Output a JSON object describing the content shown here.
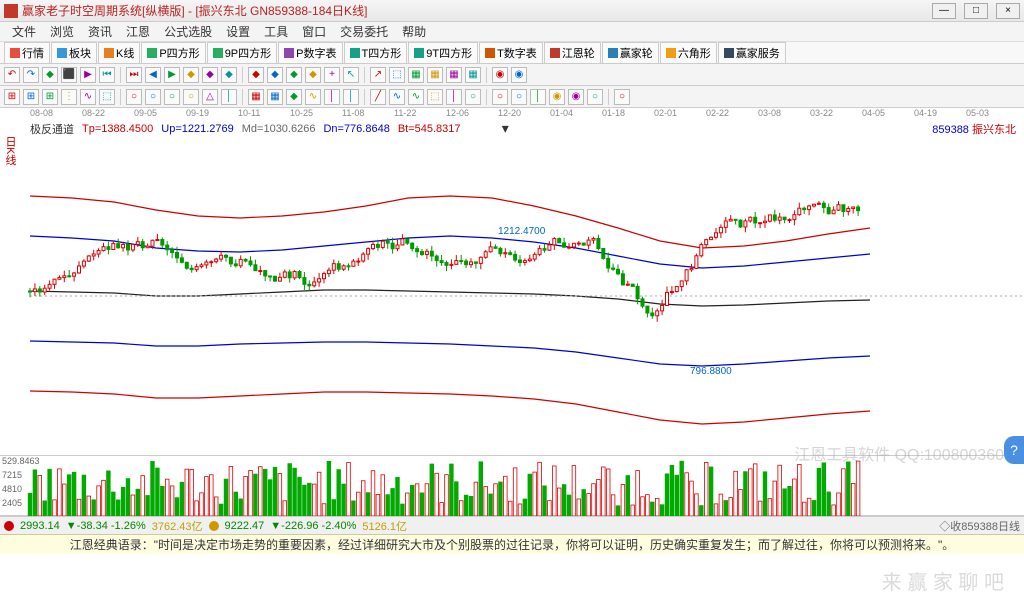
{
  "window": {
    "title": "赢家老子时空周期系统[纵横版] - [振兴东北  GN859388-184日K线]",
    "min": "—",
    "max": "□",
    "close": "×"
  },
  "menu": [
    "文件",
    "浏览",
    "资讯",
    "江恩",
    "公式选股",
    "设置",
    "工具",
    "窗口",
    "交易委托",
    "帮助"
  ],
  "tabs": [
    {
      "label": "行情",
      "color": "#e74c3c"
    },
    {
      "label": "板块",
      "color": "#3498db"
    },
    {
      "label": "K线",
      "color": "#e67e22"
    },
    {
      "label": "P四方形",
      "color": "#27ae60"
    },
    {
      "label": "9P四方形",
      "color": "#27ae60"
    },
    {
      "label": "P数字表",
      "color": "#8e44ad"
    },
    {
      "label": "T四方形",
      "color": "#16a085"
    },
    {
      "label": "9T四方形",
      "color": "#16a085"
    },
    {
      "label": "T数字表",
      "color": "#d35400"
    },
    {
      "label": "江恩轮",
      "color": "#c0392b"
    },
    {
      "label": "赢家轮",
      "color": "#2980b9"
    },
    {
      "label": "六角形",
      "color": "#f39c12"
    },
    {
      "label": "赢家服务",
      "color": "#34495e"
    }
  ],
  "toolbar_icons": [
    "↶",
    "↷",
    "◆",
    "⬛",
    "▶",
    "⏮",
    "⏭",
    "◀",
    "▶",
    "◆",
    "◆",
    "◆",
    "◆",
    "◆",
    "◆",
    "◆",
    "+",
    "↖",
    "↗",
    "⬚",
    "▦",
    "▦",
    "▦",
    "▦",
    "◉",
    "◉"
  ],
  "toolbar2_icons": [
    "⊞",
    "⊞",
    "⊞",
    "⋮",
    "∿",
    "⬚",
    "○",
    "○",
    "○",
    "○",
    "△",
    "│",
    "▦",
    "▦",
    "◆",
    "∿",
    "│",
    "│",
    "╱",
    "∿",
    "∿",
    "⬚",
    "│",
    "○",
    "○",
    "○",
    "│",
    "◉",
    "◉",
    "○",
    "○"
  ],
  "timeaxis": [
    "08-08",
    "08-22",
    "09-05",
    "09-19",
    "10-11",
    "10-25",
    "11-08",
    "11-22",
    "12-06",
    "12-20",
    "01-04",
    "01-18",
    "02-01",
    "02-22",
    "03-08",
    "03-22",
    "04-05",
    "04-19",
    "05-03"
  ],
  "leftlabel": "日K线",
  "indicator": {
    "name": "极反通道",
    "Tp": "Tp=1388.4500",
    "Up": "Up=1221.2769",
    "Md": "Md=1030.6266",
    "Dn": "Dn=776.8648",
    "Bt": "Bt=545.8317",
    "colors": {
      "Tp": "#c00",
      "Up": "#00c",
      "Md": "#888",
      "Dn": "#00c",
      "Bt": "#c00"
    },
    "code": "859388",
    "name_r": "振兴东北"
  },
  "annotations": {
    "high": "1212.4700",
    "low": "796.8800"
  },
  "chart": {
    "bands": [
      {
        "color": "#c00",
        "y": [
          60,
          62,
          66,
          74,
          80,
          82,
          80,
          76,
          70,
          62,
          60,
          62,
          70,
          80,
          92,
          105,
          112,
          110,
          105,
          98,
          92
        ]
      },
      {
        "color": "#00c",
        "y": [
          100,
          102,
          105,
          112,
          115,
          116,
          114,
          110,
          106,
          102,
          100,
          102,
          106,
          112,
          120,
          128,
          132,
          130,
          126,
          122,
          118
        ]
      },
      {
        "color": "#222",
        "y": [
          155,
          156,
          157,
          160,
          160,
          158,
          156,
          154,
          154,
          155,
          156,
          157,
          158,
          160,
          163,
          168,
          170,
          169,
          167,
          165,
          164
        ]
      },
      {
        "color": "#00c",
        "y": [
          205,
          206,
          207,
          210,
          210,
          208,
          207,
          206,
          206,
          207,
          208,
          210,
          212,
          216,
          222,
          228,
          230,
          228,
          225,
          222,
          220
        ]
      },
      {
        "color": "#c00",
        "y": [
          255,
          256,
          258,
          262,
          262,
          260,
          258,
          256,
          256,
          257,
          258,
          260,
          263,
          268,
          276,
          284,
          288,
          286,
          282,
          278,
          275
        ]
      }
    ],
    "candles_seed": 184
  },
  "volume": {
    "ylabel": "529.8463",
    "yticks": [
      "7215",
      "4810",
      "2405"
    ]
  },
  "status": {
    "idx1": "2993.14",
    "chg1": "▼-38.34 -1.26%",
    "amt1": "3762.43亿",
    "idx2": "9222.47",
    "chg2": "▼-226.96 -2.40%",
    "amt2": "5126.1亿",
    "right": "◇收859388日线"
  },
  "quote": "江恩经典语录：\"时间是决定市场走势的重要因素，经过详细研究大市及个别股票的过往记录，你将可以证明，历史确实重复发生；而了解过往，你将可以预测将来。\"。",
  "watermark1": "江恩工具软件  QQ:100800360",
  "watermark2": "来 赢 家 聊 吧"
}
